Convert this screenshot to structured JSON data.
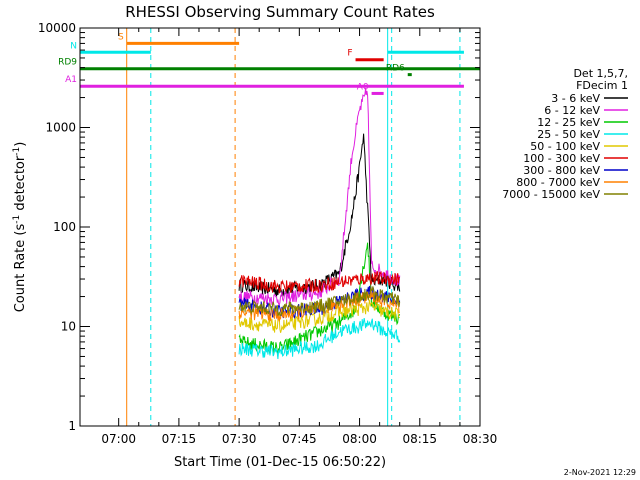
{
  "chart_data": {
    "type": "line",
    "title": "RHESSI Observing Summary Count Rates",
    "xlabel": "Start Time (01-Dec-15 06:50:22)",
    "ylabel": "Count Rate (s",
    "ylabel_sup": "-1",
    "ylabel_rest": " detector",
    "ylabel_sup2": "-1",
    "ylabel_close": ")",
    "yscale": "log",
    "ylim": [
      1,
      10000
    ],
    "xlim": [
      "06:50:22",
      "08:30:00"
    ],
    "x_ticks": [
      "07:00",
      "07:15",
      "07:30",
      "07:45",
      "08:00",
      "08:15",
      "08:30"
    ],
    "y_ticks": [
      "1",
      "10",
      "100",
      "1000",
      "10000"
    ],
    "legend_placement": "right",
    "legend_header": [
      "Det 1,5,7,",
      "FDecim 1"
    ],
    "series": [
      {
        "name": "3 - 6 keV",
        "color": "#000000",
        "points": [
          [
            "07:30",
            26
          ],
          [
            "07:40",
            23
          ],
          [
            "07:50",
            26
          ],
          [
            "07:55",
            34
          ],
          [
            "07:58",
            120
          ],
          [
            "08:00",
            400
          ],
          [
            "08:01",
            850
          ],
          [
            "08:03",
            28
          ],
          [
            "08:06",
            30
          ],
          [
            "08:10",
            25
          ]
        ]
      },
      {
        "name": "6 - 12 keV",
        "color": "#e020e0",
        "points": [
          [
            "07:30",
            20
          ],
          [
            "07:40",
            19
          ],
          [
            "07:50",
            22
          ],
          [
            "07:55",
            30
          ],
          [
            "07:58",
            500
          ],
          [
            "08:00",
            1500
          ],
          [
            "08:02",
            2400
          ],
          [
            "08:03",
            40
          ],
          [
            "08:06",
            35
          ],
          [
            "08:10",
            28
          ]
        ]
      },
      {
        "name": "12 - 25 keV",
        "color": "#00c800",
        "points": [
          [
            "07:30",
            7
          ],
          [
            "07:40",
            6
          ],
          [
            "07:50",
            9
          ],
          [
            "07:55",
            11
          ],
          [
            "07:59",
            15
          ],
          [
            "08:01",
            40
          ],
          [
            "08:02",
            70
          ],
          [
            "08:03",
            18
          ],
          [
            "08:06",
            14
          ],
          [
            "08:10",
            12
          ]
        ]
      },
      {
        "name": "25 - 50 keV",
        "color": "#00e8e8",
        "points": [
          [
            "07:30",
            6
          ],
          [
            "07:40",
            5.5
          ],
          [
            "07:50",
            6.5
          ],
          [
            "07:55",
            9
          ],
          [
            "08:00",
            10
          ],
          [
            "08:03",
            11
          ],
          [
            "08:06",
            9
          ],
          [
            "08:10",
            8
          ]
        ]
      },
      {
        "name": "50 - 100 keV",
        "color": "#e0c800",
        "points": [
          [
            "07:30",
            11
          ],
          [
            "07:40",
            10
          ],
          [
            "07:50",
            12
          ],
          [
            "07:55",
            14
          ],
          [
            "08:00",
            15
          ],
          [
            "08:03",
            16
          ],
          [
            "08:06",
            14
          ],
          [
            "08:10",
            13
          ]
        ]
      },
      {
        "name": "100 - 300 keV",
        "color": "#e00000",
        "points": [
          [
            "07:30",
            29
          ],
          [
            "07:40",
            25
          ],
          [
            "07:50",
            26
          ],
          [
            "07:55",
            28
          ],
          [
            "08:00",
            30
          ],
          [
            "08:03",
            31
          ],
          [
            "08:06",
            30
          ],
          [
            "08:10",
            30
          ]
        ]
      },
      {
        "name": "300 - 800 keV",
        "color": "#0000c8",
        "points": [
          [
            "07:30",
            17
          ],
          [
            "07:40",
            14
          ],
          [
            "07:50",
            15
          ],
          [
            "07:55",
            18
          ],
          [
            "08:00",
            21
          ],
          [
            "08:03",
            22
          ],
          [
            "08:06",
            20
          ],
          [
            "08:10",
            18
          ]
        ]
      },
      {
        "name": "800 - 7000 keV",
        "color": "#ff8000",
        "points": [
          [
            "07:30",
            14
          ],
          [
            "07:40",
            13
          ],
          [
            "07:50",
            15
          ],
          [
            "07:55",
            17
          ],
          [
            "08:00",
            19
          ],
          [
            "08:03",
            20
          ],
          [
            "08:06",
            18
          ],
          [
            "08:10",
            16
          ]
        ]
      },
      {
        "name": "7000 - 15000 keV",
        "color": "#808000",
        "points": [
          [
            "07:30",
            16
          ],
          [
            "07:40",
            15
          ],
          [
            "07:50",
            16
          ],
          [
            "07:55",
            18
          ],
          [
            "08:00",
            20
          ],
          [
            "08:03",
            22
          ],
          [
            "08:06",
            20
          ],
          [
            "08:10",
            18
          ]
        ]
      }
    ],
    "flag_bars": [
      {
        "label": "S",
        "color": "#ff8000",
        "start": "07:02",
        "end": "07:30",
        "level": 7000
      },
      {
        "label": "N",
        "color": "#00e8e8",
        "start": "06:50:22",
        "end": "07:08",
        "level": 5700
      },
      {
        "label": "",
        "color": "#00e8e8",
        "start": "08:07",
        "end": "08:26",
        "level": 5700
      },
      {
        "label": "F",
        "color": "#e00000",
        "start": "07:59",
        "end": "08:06",
        "level": 4800
      },
      {
        "label": "RD9",
        "color": "#008000",
        "start": "06:50:22",
        "end": "08:30",
        "level": 3900
      },
      {
        "label": "RD6",
        "color": "#008000",
        "start": "08:12",
        "end": "08:13",
        "level": 3400
      },
      {
        "label": "A1",
        "color": "#e020e0",
        "start": "06:50:22",
        "end": "08:26",
        "level": 2600
      },
      {
        "label": "A0",
        "color": "#e020e0",
        "start": "08:03",
        "end": "08:06",
        "level": 2200
      }
    ],
    "vlines": [
      {
        "time": "07:02",
        "color": "#ff8000",
        "style": "solid"
      },
      {
        "time": "07:08",
        "color": "#00e8e8",
        "style": "dashed"
      },
      {
        "time": "07:29",
        "color": "#ff8000",
        "style": "dashed"
      },
      {
        "time": "08:07",
        "color": "#00e8e8",
        "style": "solid"
      },
      {
        "time": "08:08",
        "color": "#00e8e8",
        "style": "dashed"
      },
      {
        "time": "08:25",
        "color": "#00e8e8",
        "style": "dashed"
      }
    ],
    "timestamp": "2-Nov-2021 12:29"
  }
}
